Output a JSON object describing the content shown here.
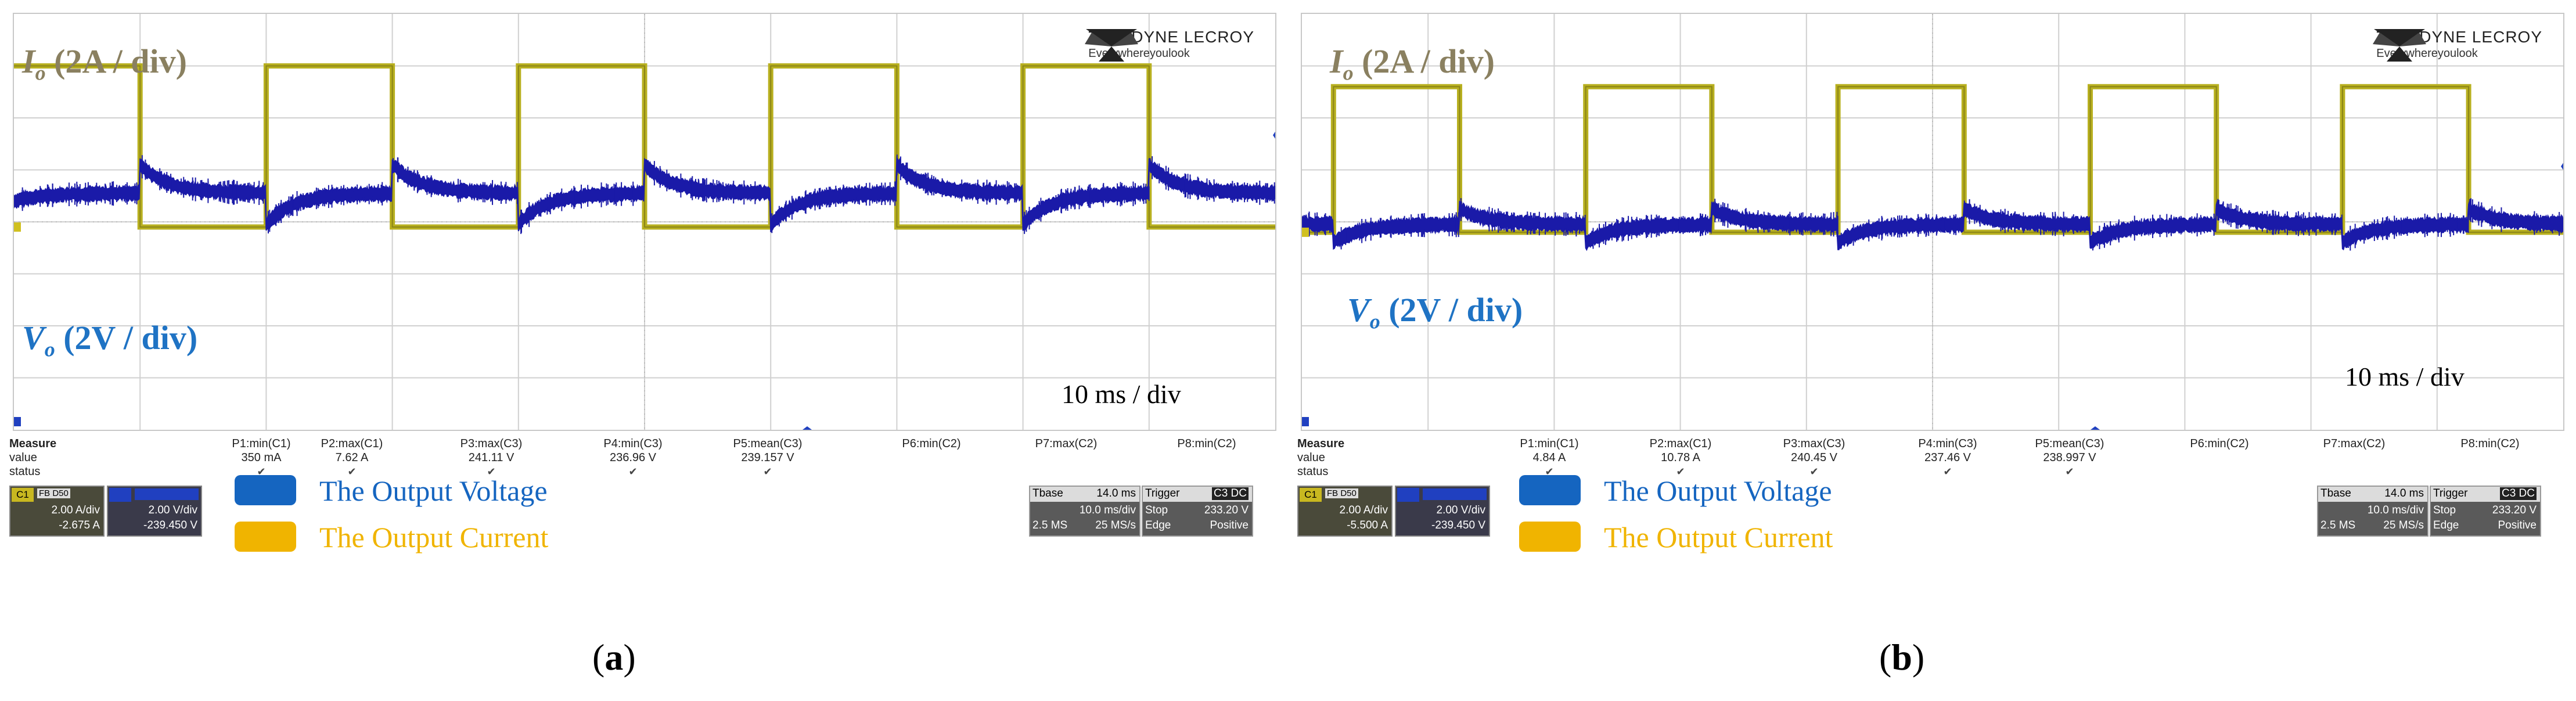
{
  "chart_data": [
    {
      "type": "line",
      "panel": "a",
      "caption": "a",
      "title": "",
      "xlabel": "",
      "ylabel": "",
      "time_per_div": "10 ms / div",
      "grid": true,
      "divisions": {
        "x": 10,
        "y": 8
      },
      "series": [
        {
          "name": "Output Current",
          "label": "Io (2A / div)",
          "color": "#b8b020",
          "shape": "square",
          "period_div": 2,
          "high_div": 7.0,
          "low_div": 3.9,
          "first_high_start_div": 0.0,
          "duty": 0.5
        },
        {
          "name": "Output Voltage",
          "label": "Vo (2V / div)",
          "color": "#1a1aa8",
          "shape": "step-recovery",
          "base_div": 4.55,
          "dip_div": 0.6,
          "overshoot_div": 0.55
        }
      ],
      "measure": {
        "title": "Measure",
        "row_labels": [
          "value",
          "status"
        ],
        "params": [
          {
            "name": "P1:min(C1)",
            "value": "350 mA",
            "status": true
          },
          {
            "name": "P2:max(C1)",
            "value": "7.62 A",
            "status": true
          },
          {
            "name": "P3:max(C3)",
            "value": "241.11 V",
            "status": true
          },
          {
            "name": "P4:min(C3)",
            "value": "236.96 V",
            "status": true
          },
          {
            "name": "P5:mean(C3)",
            "value": "239.157 V",
            "status": true
          },
          {
            "name": "P6:min(C2)",
            "value": "",
            "status": false
          },
          {
            "name": "P7:max(C2)",
            "value": "",
            "status": false
          },
          {
            "name": "P8:min(C2)",
            "value": "",
            "status": false
          }
        ]
      },
      "c1": {
        "tag": "C1",
        "flags": "FB D50",
        "scale": "2.00 A/div",
        "offset": "-2.675 A"
      },
      "c3": {
        "scale": "2.00 V/div",
        "offset": "-239.450 V"
      },
      "legend": [
        {
          "text": "The Output Voltage",
          "color": "#1565c0"
        },
        {
          "text": "The Output Current",
          "color": "#f0b400"
        }
      ],
      "timebase": {
        "label": "Tbase",
        "value": "14.0 ms",
        "div": "10.0 ms/div",
        "samples": "2.5 MS",
        "rate": "25 MS/s"
      },
      "trigger": {
        "label": "Trigger",
        "tags": "C3 DC",
        "mode": "Stop",
        "level": "233.20 V",
        "type": "Edge",
        "slope": "Positive"
      }
    },
    {
      "type": "line",
      "panel": "b",
      "caption": "b",
      "title": "",
      "xlabel": "",
      "ylabel": "",
      "time_per_div": "10 ms / div",
      "grid": true,
      "divisions": {
        "x": 10,
        "y": 8
      },
      "series": [
        {
          "name": "Output Current",
          "label": "Io (2A / div)",
          "color": "#b8b020",
          "shape": "square",
          "period_div": 2,
          "high_div": 6.6,
          "low_div": 3.8,
          "first_high_start_div": 0.25,
          "duty": 0.5
        },
        {
          "name": "Output Voltage",
          "label": "Vo (2V / div)",
          "color": "#1a1aa8",
          "shape": "step-recovery",
          "base_div": 3.95,
          "dip_div": 0.35,
          "overshoot_div": 0.3
        }
      ],
      "measure": {
        "title": "Measure",
        "row_labels": [
          "value",
          "status"
        ],
        "params": [
          {
            "name": "P1:min(C1)",
            "value": "4.84 A",
            "status": true
          },
          {
            "name": "P2:max(C1)",
            "value": "10.78 A",
            "status": true
          },
          {
            "name": "P3:max(C3)",
            "value": "240.45 V",
            "status": true
          },
          {
            "name": "P4:min(C3)",
            "value": "237.46 V",
            "status": true
          },
          {
            "name": "P5:mean(C3)",
            "value": "238.997 V",
            "status": true
          },
          {
            "name": "P6:min(C2)",
            "value": "",
            "status": false
          },
          {
            "name": "P7:max(C2)",
            "value": "",
            "status": false
          },
          {
            "name": "P8:min(C2)",
            "value": "",
            "status": false
          }
        ]
      },
      "c1": {
        "tag": "C1",
        "flags": "FB D50",
        "scale": "2.00 A/div",
        "offset": "-5.500 A"
      },
      "c3": {
        "scale": "2.00 V/div",
        "offset": "-239.450 V"
      },
      "legend": [
        {
          "text": "The Output Voltage",
          "color": "#1565c0"
        },
        {
          "text": "The Output Current",
          "color": "#f0b400"
        }
      ],
      "timebase": {
        "label": "Tbase",
        "value": "14.0 ms",
        "div": "10.0 ms/div",
        "samples": "2.5 MS",
        "rate": "25 MS/s"
      },
      "trigger": {
        "label": "Trigger",
        "tags": "C3 DC",
        "mode": "Stop",
        "level": "233.20 V",
        "type": "Edge",
        "slope": "Positive"
      }
    }
  ],
  "brand": {
    "name": "TELEDYNE LECROY",
    "tagline": "Everywhereyoulook"
  },
  "labels": {
    "io_sym": "I",
    "io_sub": "o",
    "io_rest": " (2A / div)",
    "vo_sym": "V",
    "vo_sub": "o",
    "vo_rest": " (2V / div)"
  },
  "colors": {
    "current": "#b8b020",
    "voltage": "#1a1aa8",
    "grid": "#d0d0d0",
    "io_label": "#8a8060",
    "vo_label": "#1f73c4"
  }
}
